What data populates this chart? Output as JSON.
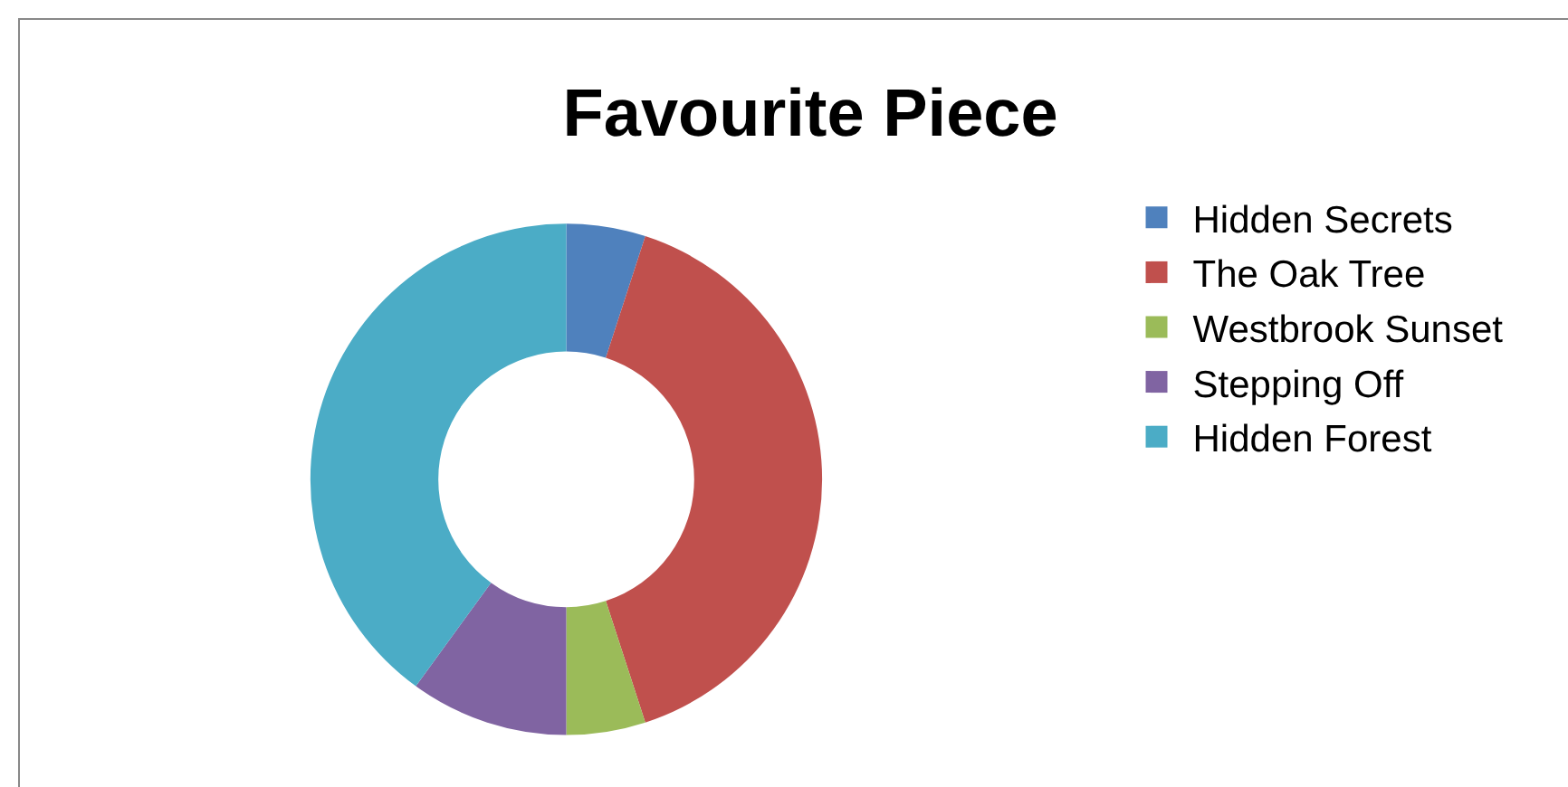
{
  "chart_data": {
    "type": "donut",
    "title": "Favourite Piece",
    "categories": [
      "Hidden Secrets",
      "The Oak Tree",
      "Westbrook Sunset",
      "Stepping Off",
      "Hidden Forest"
    ],
    "values": [
      5,
      40,
      5,
      10,
      40
    ],
    "colors": [
      "#4f81bd",
      "#c0504d",
      "#9bbb59",
      "#8064a2",
      "#4bacc6"
    ],
    "legend": "right"
  }
}
